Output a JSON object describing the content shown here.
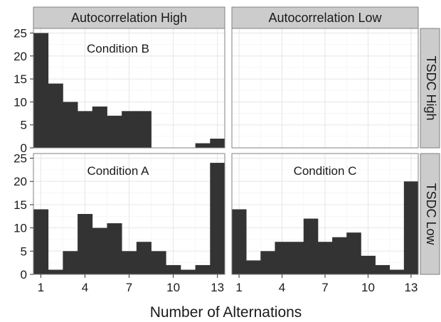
{
  "chart_data": {
    "type": "bar",
    "subtype": "faceted-histogram",
    "xlabel": "Number of Alternations",
    "ylabel": "",
    "x_ticks": [
      1,
      4,
      7,
      10,
      13
    ],
    "y_ticks": [
      0,
      5,
      10,
      15,
      20,
      25
    ],
    "xlim": [
      0.5,
      13.5
    ],
    "ylim": [
      0,
      26
    ],
    "grid": true,
    "bar_color": "#333333",
    "column_facets": [
      "Autocorrelation High",
      "Autocorrelation Low"
    ],
    "row_facets": [
      "TSDC High",
      "TSDC Low"
    ],
    "x": [
      1,
      2,
      3,
      4,
      5,
      6,
      7,
      8,
      9,
      10,
      11,
      12,
      13
    ],
    "panels": [
      {
        "row": 0,
        "col": 0,
        "annotation": "Condition B",
        "values": [
          25,
          14,
          10,
          8,
          9,
          7,
          8,
          8,
          0,
          0,
          0,
          1,
          2
        ]
      },
      {
        "row": 0,
        "col": 1,
        "annotation": "",
        "values": []
      },
      {
        "row": 1,
        "col": 0,
        "annotation": "Condition A",
        "values": [
          14,
          1,
          5,
          13,
          10,
          11,
          5,
          7,
          5,
          2,
          1,
          2,
          24
        ]
      },
      {
        "row": 1,
        "col": 1,
        "annotation": "Condition C",
        "values": [
          14,
          3,
          5,
          7,
          7,
          12,
          7,
          8,
          9,
          4,
          2,
          1,
          20
        ]
      }
    ]
  }
}
